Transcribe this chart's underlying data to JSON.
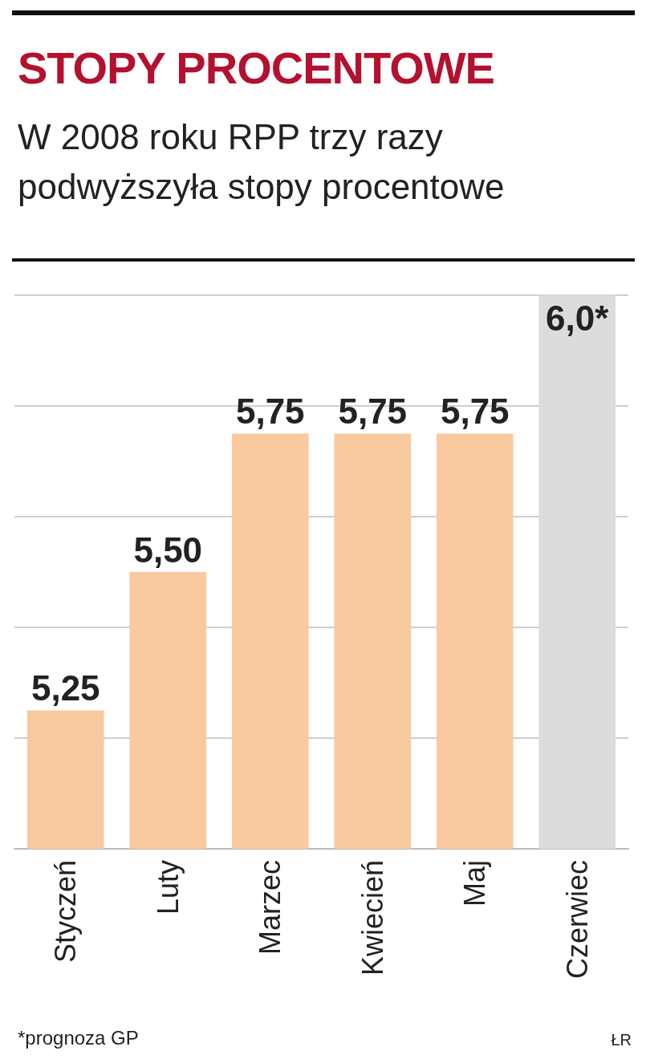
{
  "chart_data": {
    "type": "bar",
    "title": "STOPY PROCENTOWE",
    "subtitle": "W 2008 roku RPP trzy razy podwyższyła stopy procentowe",
    "categories": [
      "Styczeń",
      "Luty",
      "Marzec",
      "Kwiecień",
      "Maj",
      "Czerwiec"
    ],
    "values": [
      5.25,
      5.5,
      5.75,
      5.75,
      5.75,
      6.0
    ],
    "colors": [
      "#f9c9a0",
      "#f9c9a0",
      "#f9c9a0",
      "#f9c9a0",
      "#f9c9a0",
      "#dcdcdc"
    ],
    "value_labels": [
      "5,25",
      "5,50",
      "5,75",
      "5,75",
      "5,75",
      "6,0*"
    ],
    "ylim": [
      5,
      6
    ],
    "yticks": [
      {
        "value": 5.2,
        "label": null
      },
      {
        "value": 5.4,
        "label": null
      },
      {
        "value": 5.6,
        "label": null
      },
      {
        "value": 5.8,
        "label": null
      },
      {
        "value": 6.0,
        "label": null
      }
    ],
    "grid": "y",
    "tick_labels": "x",
    "annotations": [
      "*prognoza GP",
      "ŁR"
    ]
  }
}
